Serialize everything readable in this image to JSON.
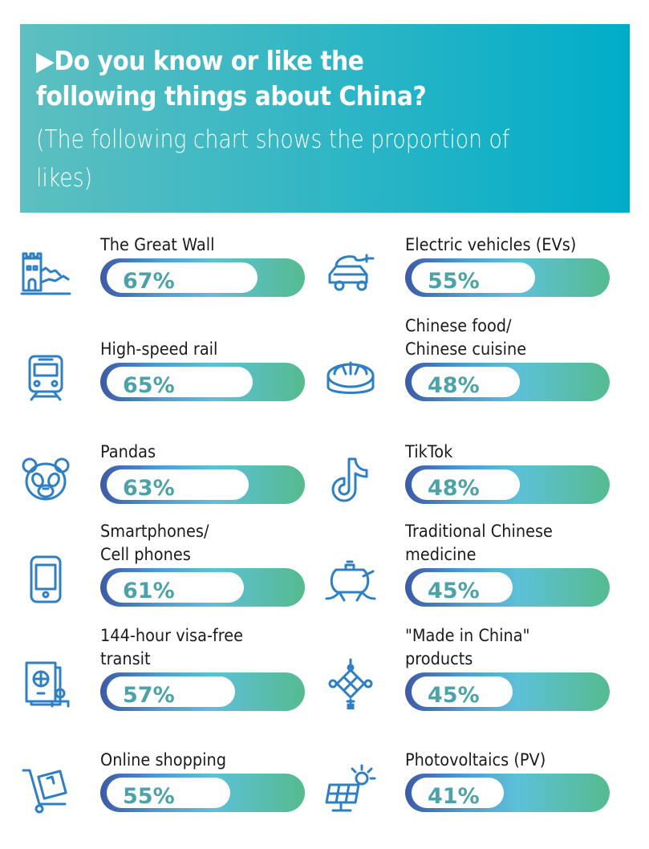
{
  "header": {
    "title": "Do you know or like the\nfollowing things about China?",
    "title_marker": "▶",
    "subtitle": "(The following chart shows the proportion of likes)",
    "colors": {
      "banner_left": "#5dbfc0",
      "banner_right": "#00adc9"
    }
  },
  "chart_data": {
    "type": "bar",
    "title": "Do you know or like the following things about China?",
    "subtitle": "(The following chart shows the proportion of likes)",
    "unit": "%",
    "items": [
      {
        "label": "The Great Wall",
        "value": 67,
        "value_label": "67%",
        "icon": "great-wall-icon",
        "column": "left"
      },
      {
        "label": "High-speed rail",
        "value": 65,
        "value_label": "65%",
        "icon": "train-icon",
        "column": "left"
      },
      {
        "label": "Pandas",
        "value": 63,
        "value_label": "63%",
        "icon": "panda-icon",
        "column": "left"
      },
      {
        "label": "Smartphones/\nCell phones",
        "value": 61,
        "value_label": "61%",
        "icon": "smartphone-icon",
        "column": "left"
      },
      {
        "label": "144-hour visa-free\ntransit",
        "value": 57,
        "value_label": "57%",
        "icon": "passport-icon",
        "column": "left"
      },
      {
        "label": "Online shopping",
        "value": 55,
        "value_label": "55%",
        "icon": "shopping-cart-icon",
        "column": "left"
      },
      {
        "label": "Electric vehicles (EVs)",
        "value": 55,
        "value_label": "55%",
        "icon": "electric-car-icon",
        "column": "right"
      },
      {
        "label": "Chinese food/\nChinese cuisine",
        "value": 48,
        "value_label": "48%",
        "icon": "dumpling-icon",
        "column": "right"
      },
      {
        "label": "TikTok",
        "value": 48,
        "value_label": "48%",
        "icon": "tiktok-icon",
        "column": "right"
      },
      {
        "label": "Traditional Chinese\nmedicine",
        "value": 45,
        "value_label": "45%",
        "icon": "herbal-pot-icon",
        "column": "right"
      },
      {
        "label": "\"Made in China\"\nproducts",
        "value": 45,
        "value_label": "45%",
        "icon": "chinese-knot-icon",
        "column": "right"
      },
      {
        "label": "Photovoltaics (PV)",
        "value": 41,
        "value_label": "41%",
        "icon": "solar-panel-icon",
        "column": "right"
      }
    ],
    "colors": {
      "bar_start": "#3d5aa6",
      "bar_mid": "#5dc0d8",
      "bar_end": "#55bb8f",
      "value_text": "#4ba3a9",
      "icon": "#2f7fc4"
    }
  }
}
